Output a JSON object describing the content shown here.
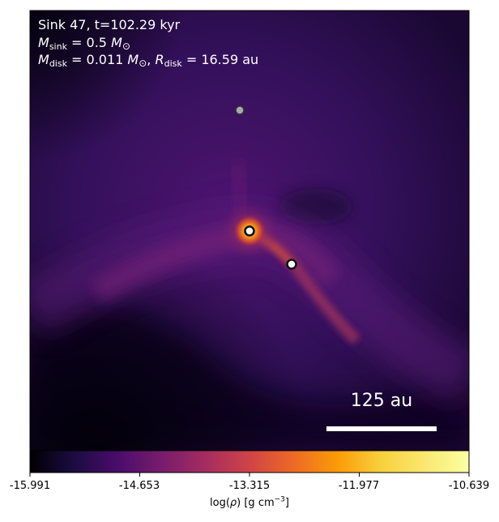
{
  "annotation": {
    "sink_line": "Sink 47, t=102.29 kyr",
    "mass_symbol": "M",
    "mass_sub": "sink",
    "mass_value": " = 0.5 ",
    "disk_mass_symbol": "M",
    "disk_mass_sub": "disk",
    "disk_mass_value": " = 0.011 ",
    "radius_symbol": "R",
    "radius_sub": "disk",
    "radius_value": " = 16.59 au",
    "sun_symbol": "M",
    "sun_sub": "⊙",
    "comma": ", "
  },
  "scale_bar": {
    "label": "125 au",
    "color": "#ffffff"
  },
  "colorbar": {
    "colormap": "inferno",
    "ticks": [
      "-15.991",
      "-14.653",
      "-13.315",
      "-11.977",
      "-10.639"
    ],
    "tick_values": [
      -15.991,
      -14.653,
      -13.315,
      -11.977,
      -10.639
    ],
    "label_prefix": "log(",
    "label_var": "ρ",
    "label_suffix": ") [g cm",
    "label_exp": "−3",
    "label_end": "]"
  },
  "sinks": [
    {
      "name": "sink-primary",
      "fill": "#ffffff",
      "stroke": "#111111"
    },
    {
      "name": "sink-secondary",
      "fill": "#ffffff",
      "stroke": "#111111"
    },
    {
      "name": "sink-distant",
      "fill": "#aaaaaa",
      "stroke": "#333333"
    }
  ]
}
